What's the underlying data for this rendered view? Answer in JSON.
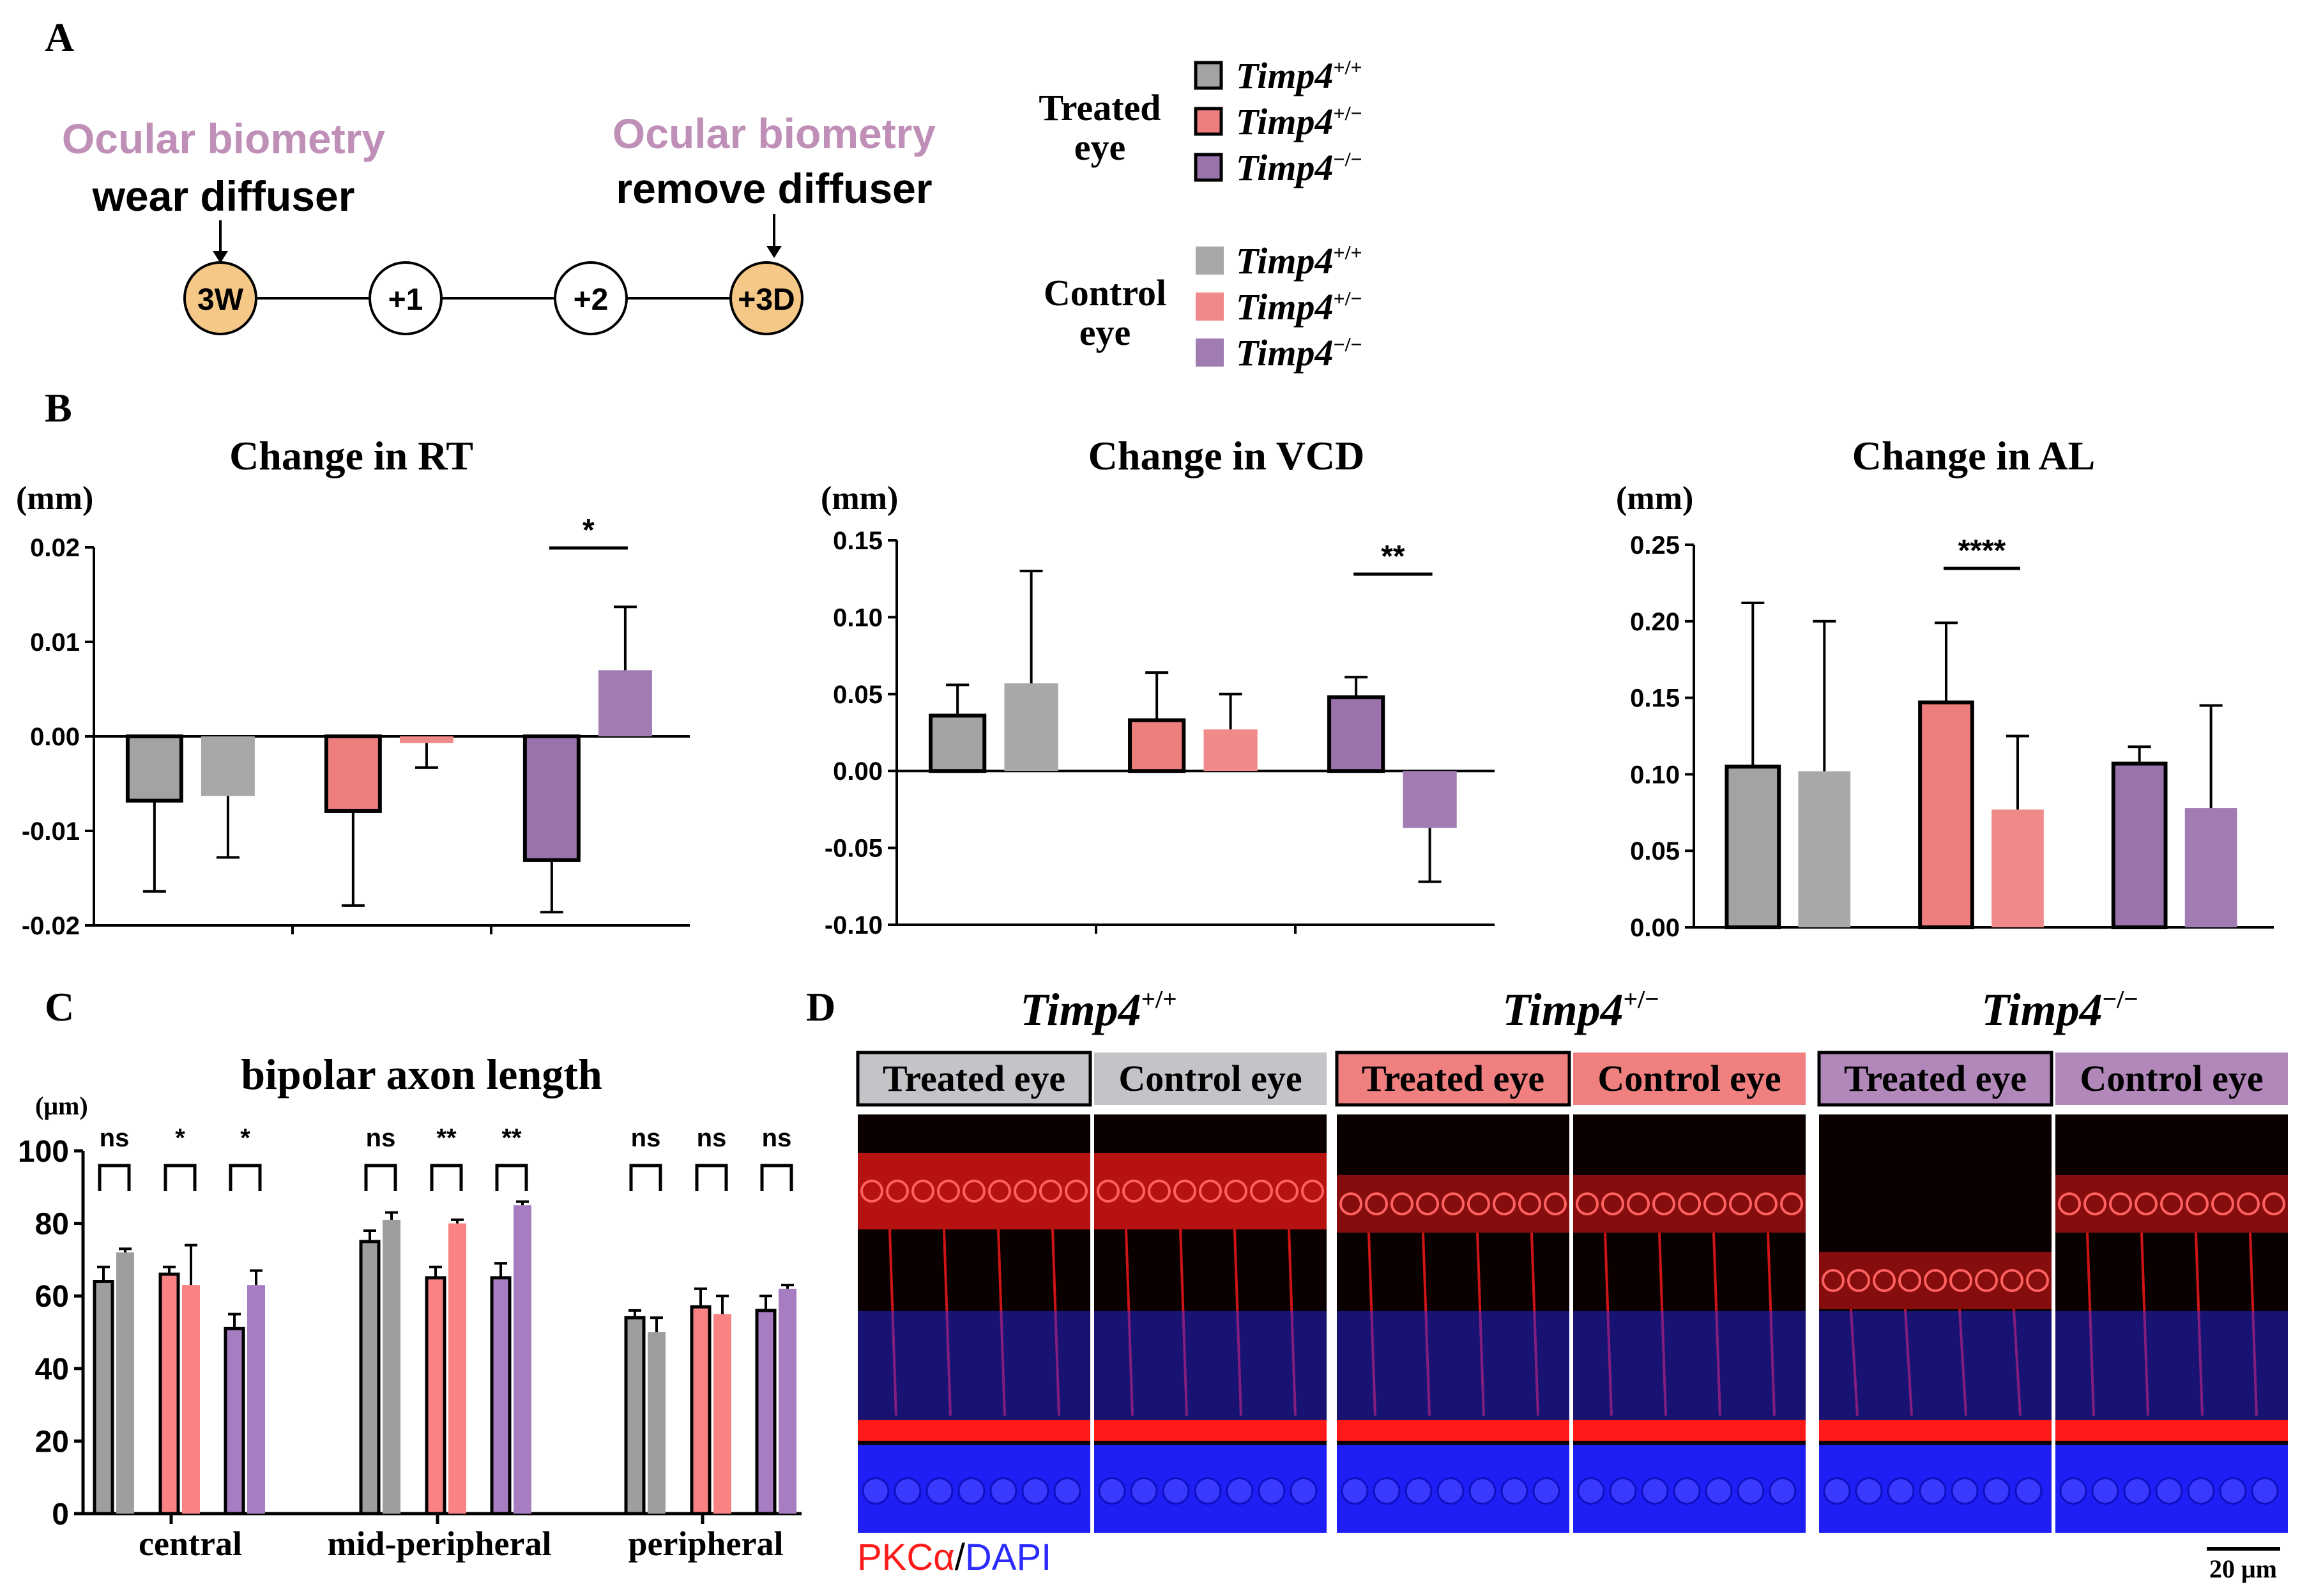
{
  "panels": {
    "A": {
      "letter": "A",
      "left_note": "Ocular biometry",
      "left_action": "wear diffuser",
      "right_note": "Ocular biometry",
      "right_action": "remove diffuser",
      "timeline": [
        "3W",
        "+1",
        "+2",
        "+3D"
      ],
      "legend": {
        "treated_label": [
          "Treated",
          "eye"
        ],
        "control_label": [
          "Control",
          "eye"
        ],
        "genotypes": [
          {
            "base": "Timp4",
            "sup": "+/+"
          },
          {
            "base": "Timp4",
            "sup": "+/−"
          },
          {
            "base": "Timp4",
            "sup": "−/−"
          }
        ]
      }
    },
    "B": {
      "letter": "B"
    },
    "C": {
      "letter": "C"
    },
    "D": {
      "letter": "D",
      "genotypes": [
        {
          "base": "Timp4",
          "sup": "+/+"
        },
        {
          "base": "Timp4",
          "sup": "+/−"
        },
        {
          "base": "Timp4",
          "sup": "−/−"
        }
      ],
      "treated_label": "Treated eye",
      "control_label": "Control eye",
      "stain_a": "PKCα",
      "stain_sep": "/",
      "stain_b": "DAPI",
      "scale_bar": "20 μm"
    }
  },
  "colors": {
    "wt_treated": "#a3a3a3",
    "wt_control": "#a8a8a8",
    "het_treated": "#ee7e7e",
    "het_control": "#f08a8a",
    "ko_treated": "#9a72ac",
    "ko_control": "#a07cb3",
    "c_wt": "#9e9e9e",
    "c_het": "#fa8282",
    "c_ko": "#a67dc0",
    "timeline_fill": "#f5c887",
    "note_color": "#bf8fb8",
    "pkc_red": "#ff1a1a",
    "dapi_blue": "#2b2bff"
  },
  "chart_data": [
    {
      "type": "bar",
      "title": "Change in RT",
      "ylabel": "(mm)",
      "ylim": [
        -0.02,
        0.02
      ],
      "yticks": [
        "0.02",
        "0.01",
        "0.00",
        "-0.01",
        "-0.02"
      ],
      "categories": [
        "Timp4+/+",
        "Timp4+/−",
        "Timp4−/−"
      ],
      "series": [
        {
          "name": "Treated eye",
          "values": [
            -0.0068,
            -0.0079,
            -0.0131
          ],
          "errors": [
            0.0096,
            0.01,
            0.0055
          ]
        },
        {
          "name": "Control eye",
          "values": [
            -0.0063,
            -0.0007,
            0.007
          ],
          "errors": [
            0.0065,
            0.0026,
            0.0067
          ]
        }
      ],
      "significance": [
        {
          "group": 2,
          "label": "*"
        }
      ]
    },
    {
      "type": "bar",
      "title": "Change in VCD",
      "ylabel": "(mm)",
      "ylim": [
        -0.1,
        0.15
      ],
      "yticks": [
        "0.15",
        "0.10",
        "0.05",
        "0.00",
        "-0.05",
        "-0.10"
      ],
      "categories": [
        "Timp4+/+",
        "Timp4+/−",
        "Timp4−/−"
      ],
      "series": [
        {
          "name": "Treated eye",
          "values": [
            0.036,
            0.033,
            0.048
          ],
          "errors": [
            0.02,
            0.031,
            0.013
          ]
        },
        {
          "name": "Control eye",
          "values": [
            0.057,
            0.027,
            -0.037
          ],
          "errors": [
            0.073,
            0.023,
            0.035
          ]
        }
      ],
      "significance": [
        {
          "group": 2,
          "label": "**"
        }
      ]
    },
    {
      "type": "bar",
      "title": "Change in AL",
      "ylabel": "(mm)",
      "ylim": [
        0,
        0.25
      ],
      "yticks": [
        "0.25",
        "0.20",
        "0.15",
        "0.10",
        "0.05",
        "0.00"
      ],
      "categories": [
        "Timp4+/+",
        "Timp4+/−",
        "Timp4−/−"
      ],
      "series": [
        {
          "name": "Treated eye",
          "values": [
            0.105,
            0.147,
            0.107
          ],
          "errors": [
            0.107,
            0.052,
            0.011
          ]
        },
        {
          "name": "Control eye",
          "values": [
            0.102,
            0.077,
            0.078
          ],
          "errors": [
            0.098,
            0.048,
            0.067
          ]
        }
      ],
      "significance": [
        {
          "group": 1,
          "label": "****"
        }
      ]
    },
    {
      "type": "bar",
      "title": "bipolar axon length",
      "ylabel": "(μm)",
      "ylim": [
        0,
        100
      ],
      "yticks": [
        "100",
        "80",
        "60",
        "40",
        "20",
        "0"
      ],
      "categories": [
        "central",
        "mid-peripheral",
        "peripheral"
      ],
      "series": [
        {
          "name": "Timp4+/+ Treated",
          "values": [
            64,
            75,
            54
          ],
          "errors": [
            4,
            3,
            2
          ]
        },
        {
          "name": "Timp4+/+ Control",
          "values": [
            72,
            81,
            50
          ],
          "errors": [
            1,
            2,
            4
          ]
        },
        {
          "name": "Timp4+/− Treated",
          "values": [
            66,
            65,
            57
          ],
          "errors": [
            2,
            3,
            5
          ]
        },
        {
          "name": "Timp4+/− Control",
          "values": [
            63,
            80,
            55
          ],
          "errors": [
            11,
            1,
            5
          ]
        },
        {
          "name": "Timp4−/− Treated",
          "values": [
            51,
            65,
            56
          ],
          "errors": [
            4,
            4,
            4
          ]
        },
        {
          "name": "Timp4−/− Control",
          "values": [
            63,
            85,
            62
          ],
          "errors": [
            4,
            1,
            1
          ]
        }
      ],
      "significance": [
        {
          "group": 0,
          "pairs": [
            "ns",
            "*",
            "*"
          ]
        },
        {
          "group": 1,
          "pairs": [
            "ns",
            "**",
            "**"
          ]
        },
        {
          "group": 2,
          "pairs": [
            "ns",
            "ns",
            "ns"
          ]
        }
      ]
    }
  ]
}
